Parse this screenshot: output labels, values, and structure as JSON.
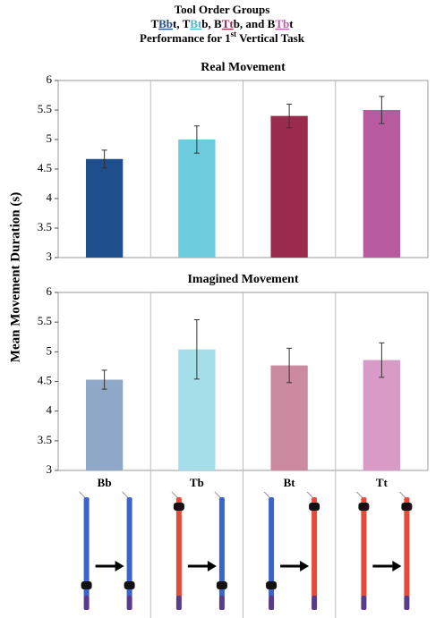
{
  "title_lines": [
    [
      {
        "text": "Tool Order Groups"
      }
    ],
    [
      {
        "text": "T"
      },
      {
        "text": "Bb",
        "color": "#1f4e8c",
        "underline": true
      },
      {
        "text": "t, T"
      },
      {
        "text": "Bt",
        "color": "#4bb8d0",
        "underline": true
      },
      {
        "text": "b, B"
      },
      {
        "text": "Tt",
        "color": "#9b2b4d",
        "underline": true
      },
      {
        "text": "b, and B"
      },
      {
        "text": "Tb",
        "color": "#c05aa8",
        "underline": true
      },
      {
        "text": "t"
      }
    ],
    [
      {
        "text": "Performance for 1"
      },
      {
        "text": "st",
        "superscript": true
      },
      {
        "text": " Vertical Task"
      }
    ]
  ],
  "y_label": "Mean Movement Duration (s)",
  "chart_data": [
    {
      "type": "bar",
      "title": "Real Movement",
      "values": [
        4.67,
        5.0,
        5.4,
        5.5
      ],
      "errors": [
        0.15,
        0.23,
        0.2,
        0.23
      ],
      "colors": [
        "#1f4e8c",
        "#6ccbdc",
        "#9b2b4d",
        "#b85a9f"
      ],
      "ylim": [
        3,
        6
      ],
      "yticks": [
        3,
        3.5,
        4,
        4.5,
        5,
        5.5,
        6
      ]
    },
    {
      "type": "bar",
      "title": "Imagined Movement",
      "categories": [
        "Bb",
        "Tb",
        "Bt",
        "Tt"
      ],
      "values": [
        4.53,
        5.04,
        4.77,
        4.86
      ],
      "errors": [
        0.16,
        0.5,
        0.29,
        0.29
      ],
      "colors": [
        "#8fa8c8",
        "#a5dde8",
        "#cc8aa0",
        "#d89ac6"
      ],
      "ylim": [
        3,
        6
      ],
      "yticks": [
        3,
        3.5,
        4,
        4.5,
        5,
        5.5,
        6
      ]
    }
  ]
}
